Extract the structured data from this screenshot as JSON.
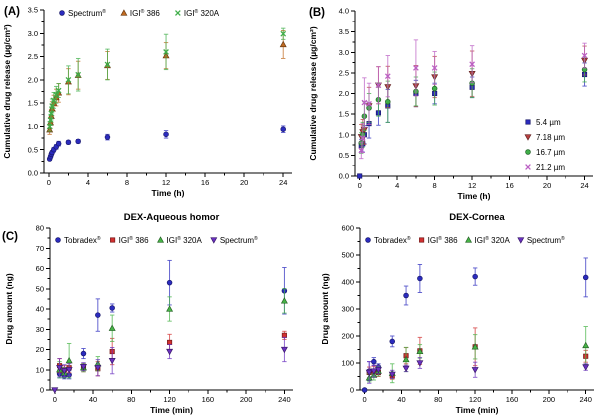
{
  "figure": {
    "background": "#ffffff",
    "axis_color": "#000000",
    "text_color": "#000000",
    "panel_labels": [
      "(A)",
      "(B)",
      "(C)"
    ]
  },
  "chart_data": [
    {
      "type": "scatter",
      "panel_label": "(A)",
      "title": "",
      "xlabel": "Time (h)",
      "ylabel": "Cumulative drug release (µg/cm²)",
      "xlim": [
        -0.5,
        24.9
      ],
      "ylim": [
        0,
        3.5
      ],
      "xticks": [
        0,
        4,
        8,
        12,
        16,
        20,
        24
      ],
      "xtick_labels": [
        "0",
        "4",
        "8",
        "12",
        "16",
        "20",
        "24"
      ],
      "yticks": [
        0,
        0.5,
        1,
        1.5,
        2,
        2.5,
        3,
        3.5
      ],
      "ytick_labels": [
        "0.0",
        "0.5",
        "1.0",
        "1.5",
        "2.0",
        "2.5",
        "3.0",
        "3.5"
      ],
      "grid": false,
      "legend_position": "top-inside-horizontal",
      "series": [
        {
          "name": "Spectrum®",
          "marker": "circle",
          "color": "#2b2bbf",
          "points": [
            [
              0.08,
              0.3,
              0.03
            ],
            [
              0.17,
              0.35,
              0.03
            ],
            [
              0.25,
              0.4,
              0.04
            ],
            [
              0.33,
              0.44,
              0.04
            ],
            [
              0.5,
              0.5,
              0.05
            ],
            [
              0.75,
              0.56,
              0.05
            ],
            [
              1,
              0.63,
              0.05
            ],
            [
              2,
              0.66,
              0.04
            ],
            [
              3,
              0.68,
              0.04
            ],
            [
              6,
              0.77,
              0.06
            ],
            [
              12,
              0.83,
              0.08
            ],
            [
              24,
              0.94,
              0.07
            ]
          ]
        },
        {
          "name": "IGI® 386",
          "marker": "triangle-up",
          "color": "#c06a20",
          "points": [
            [
              0.08,
              0.93,
              0.1
            ],
            [
              0.17,
              1.08,
              0.12
            ],
            [
              0.25,
              1.22,
              0.14
            ],
            [
              0.33,
              1.38,
              0.15
            ],
            [
              0.5,
              1.5,
              0.17
            ],
            [
              0.75,
              1.62,
              0.18
            ],
            [
              1,
              1.72,
              0.2
            ],
            [
              2,
              1.96,
              0.28
            ],
            [
              3,
              2.1,
              0.3
            ],
            [
              6,
              2.31,
              0.3
            ],
            [
              12,
              2.52,
              0.28
            ],
            [
              24,
              2.76,
              0.3
            ]
          ]
        },
        {
          "name": "IGI® 320A",
          "marker": "x",
          "color": "#3fae49",
          "points": [
            [
              0.08,
              1.0,
              0.1
            ],
            [
              0.17,
              1.14,
              0.12
            ],
            [
              0.25,
              1.28,
              0.14
            ],
            [
              0.33,
              1.44,
              0.15
            ],
            [
              0.5,
              1.56,
              0.17
            ],
            [
              0.75,
              1.68,
              0.18
            ],
            [
              1,
              1.77,
              0.15
            ],
            [
              2,
              2.0,
              0.3
            ],
            [
              3,
              2.11,
              0.35
            ],
            [
              6,
              2.33,
              0.33
            ],
            [
              12,
              2.6,
              0.38
            ],
            [
              24,
              2.99,
              0.12
            ]
          ]
        }
      ]
    },
    {
      "type": "scatter",
      "panel_label": "(B)",
      "title": "",
      "xlabel": "Time (h)",
      "ylabel": "Cumulative drug release (µg/cm²)",
      "xlim": [
        -0.5,
        24.9
      ],
      "ylim": [
        0,
        4
      ],
      "xticks": [
        0,
        4,
        8,
        12,
        16,
        20,
        24
      ],
      "xtick_labels": [
        "0",
        "4",
        "8",
        "12",
        "16",
        "20",
        "24"
      ],
      "yticks": [
        0,
        0.5,
        1,
        1.5,
        2,
        2.5,
        3,
        3.5,
        4
      ],
      "ytick_labels": [
        "0.0",
        "0.5",
        "1.0",
        "1.5",
        "2.0",
        "2.5",
        "3.0",
        "3.5",
        "4.0"
      ],
      "grid": false,
      "legend_position": "right-inside-vertical",
      "series": [
        {
          "name": "5.4 µm",
          "marker": "square",
          "color": "#2b2bbf",
          "points": [
            [
              0,
              0,
              0
            ],
            [
              0.17,
              0.74,
              0.15
            ],
            [
              0.33,
              0.78,
              0.2
            ],
            [
              0.5,
              1.0,
              0.22
            ],
            [
              1,
              1.27,
              0.35
            ],
            [
              2,
              1.53,
              0.3
            ],
            [
              3,
              1.7,
              0.4
            ],
            [
              6,
              2.0,
              0.32
            ],
            [
              8,
              2.0,
              0.25
            ],
            [
              12,
              2.15,
              0.25
            ],
            [
              24,
              2.46,
              0.28
            ]
          ]
        },
        {
          "name": "7.18 µm",
          "marker": "triangle-down",
          "color": "#b84040",
          "points": [
            [
              0.17,
              0.95,
              0.3
            ],
            [
              0.33,
              1.07,
              0.3
            ],
            [
              0.5,
              1.12,
              0.35
            ],
            [
              1,
              1.7,
              0.45
            ],
            [
              2,
              2.2,
              0.45
            ],
            [
              3,
              2.16,
              0.5
            ],
            [
              6,
              2.18,
              0.5
            ],
            [
              8,
              2.4,
              0.5
            ],
            [
              12,
              2.48,
              0.55
            ],
            [
              24,
              2.8,
              0.35
            ]
          ]
        },
        {
          "name": "16.7 µm",
          "marker": "circle",
          "color": "#3fae49",
          "points": [
            [
              0.17,
              0.8,
              0.25
            ],
            [
              0.33,
              1.0,
              0.3
            ],
            [
              0.5,
              1.45,
              0.35
            ],
            [
              1,
              1.65,
              0.35
            ],
            [
              2,
              1.85,
              0.4
            ],
            [
              3,
              1.8,
              0.5
            ],
            [
              6,
              2.05,
              0.35
            ],
            [
              8,
              2.12,
              0.4
            ],
            [
              12,
              2.25,
              0.35
            ],
            [
              24,
              2.58,
              0.3
            ]
          ]
        },
        {
          "name": "21.2 µm",
          "marker": "x",
          "color": "#bb5fc4",
          "points": [
            [
              0.17,
              0.62,
              0.2
            ],
            [
              0.33,
              0.92,
              0.35
            ],
            [
              0.5,
              1.78,
              0.6
            ],
            [
              1,
              1.75,
              0.5
            ],
            [
              2,
              2.2,
              0.45
            ],
            [
              3,
              2.42,
              0.5
            ],
            [
              6,
              2.62,
              0.68
            ],
            [
              8,
              2.62,
              0.4
            ],
            [
              12,
              2.71,
              0.45
            ],
            [
              24,
              2.92,
              0.3
            ]
          ]
        }
      ]
    },
    {
      "type": "scatter",
      "panel_label": "(C)",
      "title": "DEX-Aqueous homor",
      "xlabel": "Time (min)",
      "ylabel": "Drug amount (ng)",
      "xlim": [
        -5,
        249
      ],
      "ylim": [
        0,
        80
      ],
      "xticks": [
        0,
        40,
        80,
        120,
        160,
        200,
        240
      ],
      "xtick_labels": [
        "0",
        "40",
        "80",
        "120",
        "160",
        "200",
        "240"
      ],
      "yticks": [
        0,
        10,
        20,
        30,
        40,
        50,
        60,
        70,
        80
      ],
      "ytick_labels": [
        "0",
        "10",
        "20",
        "30",
        "40",
        "50",
        "60",
        "70",
        "80"
      ],
      "grid": false,
      "legend_position": "top-inside-horizontal",
      "series": [
        {
          "name": "Tobradex®",
          "marker": "circle",
          "color": "#2b2bbf",
          "points": [
            [
              5,
              8,
              2
            ],
            [
              10,
              7,
              1.5
            ],
            [
              15,
              7.5,
              2
            ],
            [
              30,
              18,
              2.5
            ],
            [
              45,
              37,
              8
            ],
            [
              60,
              40.5,
              2
            ],
            [
              120,
              53,
              11
            ],
            [
              240,
              49,
              11.5
            ]
          ]
        },
        {
          "name": "IGI® 386",
          "marker": "square",
          "color": "#d23030",
          "points": [
            [
              5,
              12,
              3.5
            ],
            [
              10,
              10,
              2
            ],
            [
              15,
              11,
              2.5
            ],
            [
              30,
              11,
              2
            ],
            [
              45,
              10.5,
              3.5
            ],
            [
              60,
              19,
              6.5
            ],
            [
              120,
              23.5,
              4
            ],
            [
              240,
              27,
              2
            ]
          ]
        },
        {
          "name": "IGI® 320A",
          "marker": "triangle-up",
          "color": "#46b446",
          "points": [
            [
              5,
              10,
              4
            ],
            [
              10,
              8.5,
              2.5
            ],
            [
              15,
              14.5,
              8.5
            ],
            [
              30,
              11,
              2
            ],
            [
              45,
              13,
              3.5
            ],
            [
              60,
              30.5,
              6.5
            ],
            [
              120,
              40,
              6
            ],
            [
              240,
              44,
              6
            ]
          ]
        },
        {
          "name": "Spectrum®",
          "marker": "triangle-down",
          "color": "#6a30c0",
          "points": [
            [
              0,
              0,
              0
            ],
            [
              5,
              11,
              4.5
            ],
            [
              10,
              9.5,
              3
            ],
            [
              15,
              10,
              3
            ],
            [
              30,
              11.5,
              2
            ],
            [
              45,
              11,
              4
            ],
            [
              60,
              14.5,
              6.5
            ],
            [
              120,
              19,
              3.5
            ],
            [
              240,
              20,
              6
            ]
          ]
        }
      ]
    },
    {
      "type": "scatter",
      "panel_label": "",
      "title": "DEX-Cornea",
      "xlabel": "Time (min)",
      "ylabel": "Drug amount (ng)",
      "xlim": [
        -5,
        249
      ],
      "ylim": [
        0,
        600
      ],
      "xticks": [
        0,
        40,
        80,
        120,
        160,
        200,
        240
      ],
      "xtick_labels": [
        "0",
        "40",
        "80",
        "120",
        "160",
        "200",
        "240"
      ],
      "yticks": [
        0,
        100,
        200,
        300,
        400,
        500,
        600
      ],
      "ytick_labels": [
        "0",
        "100",
        "200",
        "300",
        "400",
        "500",
        "600"
      ],
      "grid": false,
      "legend_position": "top-inside-horizontal",
      "series": [
        {
          "name": "Tobradex®",
          "marker": "circle",
          "color": "#2b2bbf",
          "points": [
            [
              0,
              0,
              0
            ],
            [
              5,
              70,
              35
            ],
            [
              10,
              105,
              15
            ],
            [
              15,
              85,
              12
            ],
            [
              30,
              180,
              20
            ],
            [
              45,
              350,
              35
            ],
            [
              60,
              413,
              52
            ],
            [
              120,
              420,
              32
            ],
            [
              240,
              417,
              72
            ]
          ]
        },
        {
          "name": "IGI® 386",
          "marker": "square",
          "color": "#d23030",
          "points": [
            [
              5,
              65,
              20
            ],
            [
              10,
              70,
              18
            ],
            [
              15,
              65,
              15
            ],
            [
              30,
              52,
              12
            ],
            [
              45,
              127,
              30
            ],
            [
              60,
              145,
              50
            ],
            [
              120,
              160,
              70
            ],
            [
              240,
              125,
              22
            ]
          ]
        },
        {
          "name": "IGI® 320A",
          "marker": "triangle-up",
          "color": "#46b446",
          "points": [
            [
              5,
              45,
              15
            ],
            [
              10,
              55,
              18
            ],
            [
              15,
              70,
              18
            ],
            [
              30,
              62,
              35
            ],
            [
              45,
              113,
              45
            ],
            [
              60,
              143,
              25
            ],
            [
              120,
              160,
              45
            ],
            [
              240,
              165,
              70
            ]
          ]
        },
        {
          "name": "Spectrum®",
          "marker": "triangle-down",
          "color": "#6a30c0",
          "points": [
            [
              5,
              65,
              40
            ],
            [
              10,
              70,
              22
            ],
            [
              15,
              75,
              15
            ],
            [
              30,
              58,
              15
            ],
            [
              45,
              80,
              12
            ],
            [
              60,
              100,
              20
            ],
            [
              120,
              75,
              28
            ],
            [
              240,
              85,
              12
            ]
          ]
        }
      ]
    }
  ]
}
